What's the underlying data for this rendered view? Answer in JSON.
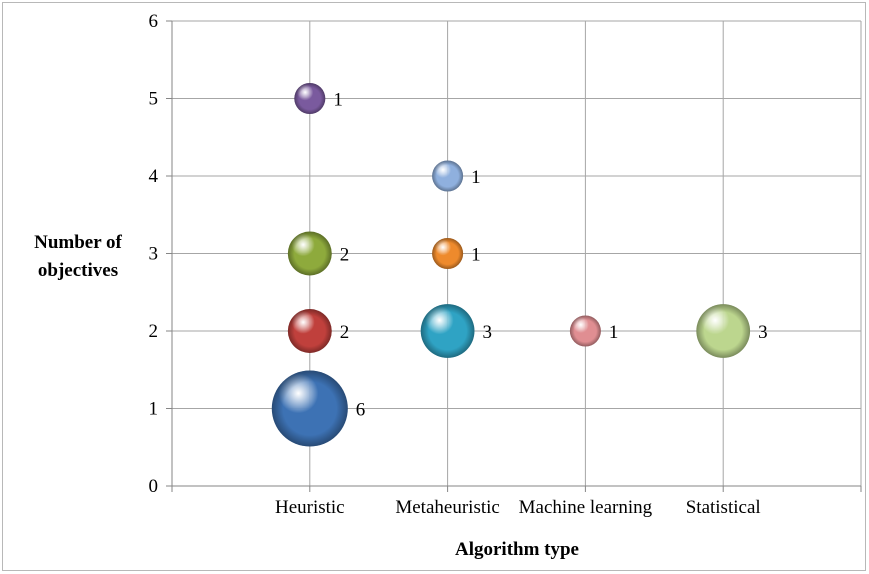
{
  "chart_data": {
    "type": "bubble",
    "xlabel": "Algorithm type",
    "ylabel_lines": [
      "Number of",
      "objectives"
    ],
    "categories": [
      "Heuristic",
      "Metaheuristic",
      "Machine learning",
      "Statistical"
    ],
    "ylim": [
      0,
      6
    ],
    "yticks": [
      "0",
      "1",
      "2",
      "3",
      "4",
      "5",
      "6"
    ],
    "grid": true,
    "legend": "none",
    "points": [
      {
        "category": "Heuristic",
        "y": 5,
        "size": 1,
        "label": "1",
        "color": "#7a5a9e"
      },
      {
        "category": "Heuristic",
        "y": 3,
        "size": 2,
        "label": "2",
        "color": "#8eaa3c"
      },
      {
        "category": "Heuristic",
        "y": 2,
        "size": 2,
        "label": "2",
        "color": "#c0403c"
      },
      {
        "category": "Heuristic",
        "y": 1,
        "size": 6,
        "label": "6",
        "color": "#3d72b4"
      },
      {
        "category": "Metaheuristic",
        "y": 4,
        "size": 1,
        "label": "1",
        "color": "#8fb0de"
      },
      {
        "category": "Metaheuristic",
        "y": 3,
        "size": 1,
        "label": "1",
        "color": "#ee8a2c"
      },
      {
        "category": "Metaheuristic",
        "y": 2,
        "size": 3,
        "label": "3",
        "color": "#2fa3c4"
      },
      {
        "category": "Machine learning",
        "y": 2,
        "size": 1,
        "label": "1",
        "color": "#e08e92"
      },
      {
        "category": "Statistical",
        "y": 2,
        "size": 3,
        "label": "3",
        "color": "#bcd68e"
      }
    ]
  }
}
